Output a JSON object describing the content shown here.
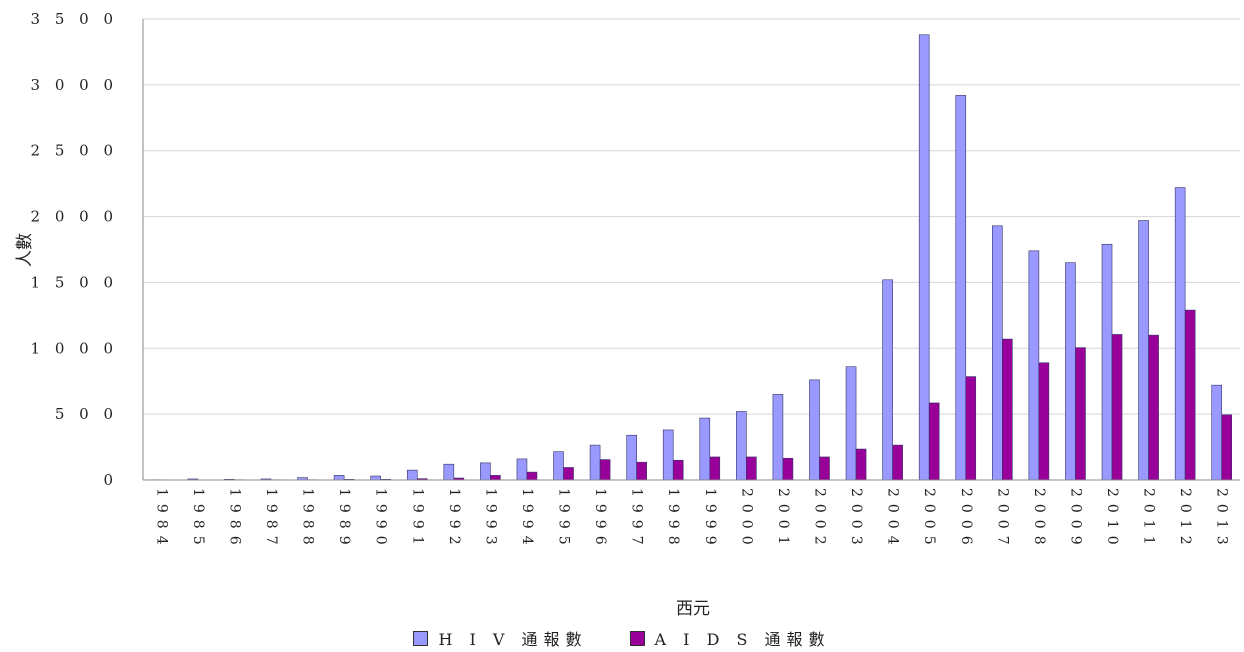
{
  "chart_data": {
    "type": "bar",
    "xlabel": "西元",
    "ylabel": "人數",
    "ylim": [
      0,
      3500
    ],
    "yticks": [
      "0",
      "5 0 0",
      "1 0 0 0",
      "1 5 0 0",
      "2 0 0 0",
      "2 5 0 0",
      "3 0 0 0",
      "3 5 0 0"
    ],
    "categories": [
      "1984",
      "1985",
      "1986",
      "1987",
      "1988",
      "1989",
      "1990",
      "1991",
      "1992",
      "1993",
      "1994",
      "1995",
      "1996",
      "1997",
      "1998",
      "1999",
      "2000",
      "2001",
      "2002",
      "2003",
      "2004",
      "2005",
      "2006",
      "2007",
      "2008",
      "2009",
      "2010",
      "2011",
      "2012",
      "2013"
    ],
    "grid": true,
    "legend_position": "bottom",
    "series": [
      {
        "name": "H I V 通報數",
        "color": "#9999ff",
        "values": [
          2,
          8,
          5,
          8,
          18,
          35,
          30,
          75,
          120,
          130,
          160,
          215,
          265,
          340,
          380,
          470,
          520,
          650,
          760,
          860,
          1520,
          3380,
          2920,
          1930,
          1740,
          1650,
          1790,
          1970,
          2220,
          720
        ]
      },
      {
        "name": "A I D S 通報數",
        "color": "#990099",
        "values": [
          0,
          0,
          2,
          2,
          2,
          5,
          5,
          10,
          15,
          35,
          60,
          95,
          155,
          135,
          150,
          175,
          175,
          165,
          175,
          235,
          265,
          585,
          785,
          1070,
          890,
          1005,
          1105,
          1100,
          1290,
          495
        ]
      }
    ]
  }
}
